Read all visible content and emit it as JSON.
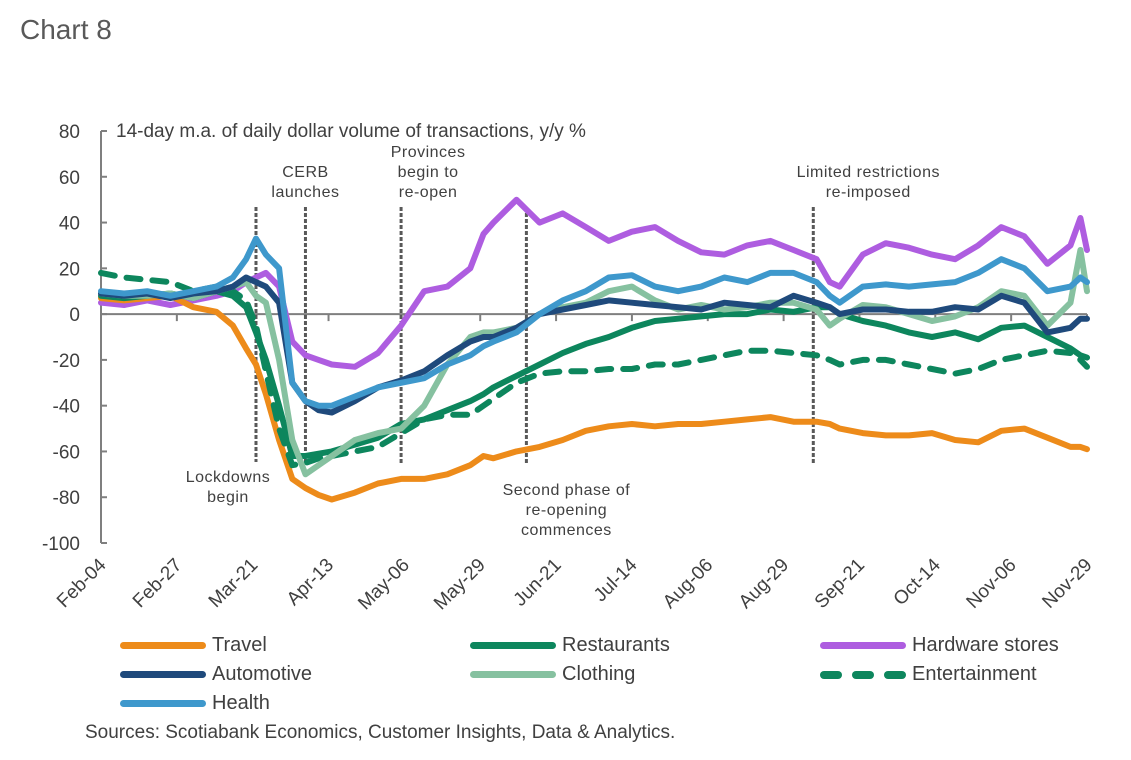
{
  "title": "Chart 8",
  "sources": "Sources: Scotiabank Economics, Customer Insights, Data & Analytics.",
  "chart_data": {
    "type": "line",
    "title": "Chart 8",
    "subtitle": "14-day m.a. of daily dollar volume of transactions, y/y %",
    "xlabel": "",
    "ylabel": "",
    "ylim": [
      -100,
      80
    ],
    "yticks": [
      80,
      60,
      40,
      20,
      0,
      -20,
      -40,
      -60,
      -80,
      -100
    ],
    "x_ticks": [
      "Feb-04",
      "Feb-27",
      "Mar-21",
      "Apr-13",
      "May-06",
      "May-29",
      "Jun-21",
      "Jul-14",
      "Aug-06",
      "Aug-29",
      "Sep-21",
      "Oct-14",
      "Nov-06",
      "Nov-29"
    ],
    "x_day_range": [
      0,
      299
    ],
    "legend": "bottom",
    "grid": false,
    "x_days": [
      0,
      7,
      14,
      21,
      28,
      35,
      40,
      44,
      47,
      50,
      54,
      58,
      62,
      66,
      70,
      77,
      84,
      91,
      98,
      105,
      112,
      116,
      119,
      126,
      133,
      140,
      147,
      154,
      161,
      168,
      175,
      182,
      189,
      196,
      203,
      210,
      217,
      221,
      224,
      231,
      238,
      245,
      252,
      259,
      266,
      273,
      280,
      287,
      294,
      297,
      299
    ],
    "series": [
      {
        "name": "Travel",
        "color": "#ED8B1A",
        "dashed": false,
        "values": [
          7,
          6,
          7,
          8,
          3,
          1,
          -5,
          -15,
          -22,
          -35,
          -55,
          -72,
          -76,
          -79,
          -81,
          -78,
          -74,
          -72,
          -72,
          -70,
          -66,
          -62,
          -63,
          -60,
          -58,
          -55,
          -51,
          -49,
          -48,
          -49,
          -48,
          -48,
          -47,
          -46,
          -45,
          -47,
          -47,
          -48,
          -50,
          -52,
          -53,
          -53,
          -52,
          -55,
          -56,
          -51,
          -50,
          -54,
          -58,
          -58,
          -59
        ]
      },
      {
        "name": "Restaurants",
        "color": "#0D865D",
        "dashed": false,
        "values": [
          8,
          7,
          8,
          9,
          7,
          10,
          8,
          3,
          -8,
          -20,
          -40,
          -62,
          -62,
          -61,
          -60,
          -57,
          -54,
          -48,
          -46,
          -42,
          -38,
          -35,
          -32,
          -27,
          -22,
          -17,
          -13,
          -10,
          -6,
          -3,
          -2,
          -1,
          0,
          0,
          2,
          1,
          3,
          3,
          0,
          -3,
          -5,
          -8,
          -10,
          -8,
          -11,
          -6,
          -5,
          -10,
          -15,
          -18,
          -19
        ]
      },
      {
        "name": "Hardware stores",
        "color": "#AE5DE0",
        "dashed": false,
        "values": [
          5,
          4,
          6,
          4,
          6,
          8,
          10,
          14,
          16,
          18,
          12,
          -12,
          -18,
          -20,
          -22,
          -23,
          -17,
          -5,
          10,
          12,
          20,
          35,
          40,
          50,
          40,
          44,
          38,
          32,
          36,
          38,
          32,
          27,
          26,
          30,
          32,
          28,
          24,
          14,
          12,
          26,
          31,
          29,
          26,
          24,
          30,
          38,
          34,
          22,
          30,
          42,
          28
        ]
      },
      {
        "name": "Automotive",
        "color": "#1F4A7C",
        "dashed": false,
        "values": [
          9,
          8,
          9,
          7,
          9,
          10,
          12,
          16,
          14,
          12,
          5,
          -30,
          -38,
          -42,
          -43,
          -38,
          -32,
          -29,
          -25,
          -18,
          -12,
          -10,
          -10,
          -6,
          0,
          2,
          4,
          6,
          5,
          4,
          3,
          2,
          5,
          4,
          3,
          8,
          5,
          3,
          0,
          2,
          2,
          1,
          1,
          3,
          2,
          8,
          5,
          -8,
          -6,
          -2,
          -2
        ]
      },
      {
        "name": "Clothing",
        "color": "#86C1A0",
        "dashed": false,
        "values": [
          9,
          8,
          8,
          9,
          7,
          10,
          12,
          14,
          8,
          5,
          -20,
          -55,
          -70,
          -66,
          -62,
          -55,
          -52,
          -50,
          -40,
          -22,
          -10,
          -8,
          -8,
          -6,
          0,
          3,
          5,
          10,
          12,
          6,
          2,
          4,
          2,
          3,
          5,
          5,
          2,
          -5,
          -2,
          4,
          3,
          0,
          -3,
          -1,
          3,
          10,
          8,
          -5,
          5,
          28,
          10
        ]
      },
      {
        "name": "Entertainment",
        "color": "#0D865D",
        "dashed": true,
        "values": [
          18,
          16,
          15,
          14,
          10,
          12,
          10,
          6,
          -5,
          -25,
          -50,
          -66,
          -65,
          -63,
          -62,
          -60,
          -58,
          -52,
          -46,
          -44,
          -44,
          -40,
          -37,
          -30,
          -26,
          -25,
          -25,
          -24,
          -24,
          -22,
          -22,
          -20,
          -18,
          -16,
          -16,
          -17,
          -18,
          -20,
          -22,
          -20,
          -20,
          -22,
          -24,
          -26,
          -24,
          -20,
          -18,
          -16,
          -17,
          -20,
          -23
        ]
      },
      {
        "name": "Health",
        "color": "#3E98CC",
        "dashed": false,
        "values": [
          10,
          9,
          10,
          8,
          10,
          12,
          16,
          24,
          33,
          26,
          20,
          -30,
          -38,
          -40,
          -40,
          -36,
          -32,
          -30,
          -28,
          -22,
          -18,
          -14,
          -12,
          -8,
          0,
          6,
          10,
          16,
          17,
          12,
          10,
          12,
          16,
          14,
          18,
          18,
          14,
          8,
          5,
          12,
          13,
          12,
          13,
          14,
          18,
          24,
          20,
          10,
          12,
          16,
          14
        ]
      }
    ],
    "annotations": [
      {
        "lines": [
          "Lockdowns",
          "begin"
        ],
        "x_day": 47,
        "label_pos": "below"
      },
      {
        "lines": [
          "CERB",
          "launches"
        ],
        "x_day": 62,
        "label_pos": "above"
      },
      {
        "lines": [
          "Provinces",
          "begin to",
          "re-open"
        ],
        "x_day": 91,
        "label_pos": "above"
      },
      {
        "lines": [
          "Second phase of",
          "re-opening",
          "commences"
        ],
        "x_day": 129,
        "label_pos": "below"
      },
      {
        "lines": [
          "Limited restrictions",
          "re-imposed"
        ],
        "x_day": 216,
        "label_pos": "above"
      }
    ]
  }
}
